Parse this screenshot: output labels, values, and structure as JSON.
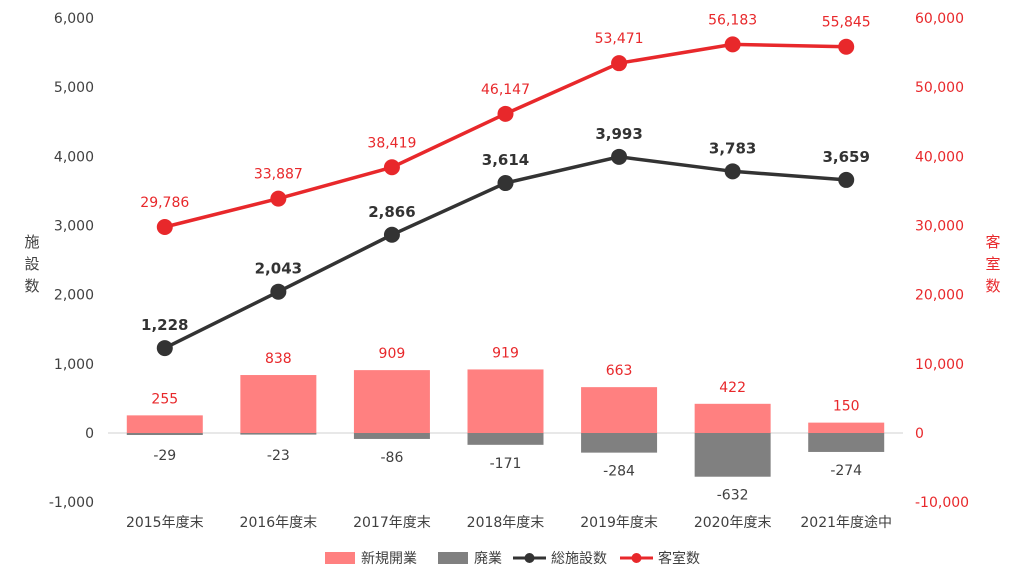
{
  "chart_data": {
    "type": "bar",
    "categories": [
      "2015年度末",
      "2016年度末",
      "2017年度末",
      "2018年度末",
      "2019年度末",
      "2020年度末",
      "2021年度途中"
    ],
    "series": [
      {
        "name": "新規開業",
        "type": "bar",
        "axis": "left",
        "color": "#ff8080",
        "values": [
          255,
          838,
          909,
          919,
          663,
          422,
          150
        ]
      },
      {
        "name": "廃業",
        "type": "bar",
        "axis": "left",
        "color": "#808080",
        "values": [
          -29,
          -23,
          -86,
          -171,
          -284,
          -632,
          -274
        ]
      },
      {
        "name": "総施設数",
        "type": "line",
        "axis": "left",
        "color": "#333333",
        "values": [
          1228,
          2043,
          2866,
          3614,
          3993,
          3783,
          3659
        ]
      },
      {
        "name": "客室数",
        "type": "line",
        "axis": "right",
        "color": "#e8282b",
        "values": [
          29786,
          33887,
          38419,
          46147,
          53471,
          56183,
          55845
        ]
      }
    ],
    "labels": {
      "new": [
        "255",
        "838",
        "909",
        "919",
        "663",
        "422",
        "150"
      ],
      "closed": [
        "-29",
        "-23",
        "-86",
        "-171",
        "-284",
        "-632",
        "-274"
      ],
      "facilities": [
        "1,228",
        "2,043",
        "2,866",
        "3,614",
        "3,993",
        "3,783",
        "3,659"
      ],
      "rooms": [
        "29,786",
        "33,887",
        "38,419",
        "46,147",
        "53,471",
        "56,183",
        "55,845"
      ]
    },
    "y_left": {
      "title": "施設数",
      "ylim": [
        -1000,
        6000
      ],
      "ticks": [
        -1000,
        0,
        1000,
        2000,
        3000,
        4000,
        5000,
        6000
      ],
      "tick_labels": [
        "-1,000",
        "0",
        "1,000",
        "2,000",
        "3,000",
        "4,000",
        "5,000",
        "6,000"
      ]
    },
    "y_right": {
      "title": "客室数",
      "ylim": [
        -10000,
        60000
      ],
      "ticks": [
        -10000,
        0,
        10000,
        20000,
        30000,
        40000,
        50000,
        60000
      ],
      "tick_labels": [
        "-10,000",
        "0",
        "10,000",
        "20,000",
        "30,000",
        "40,000",
        "50,000",
        "60,000"
      ]
    },
    "legend_position": "bottom",
    "grid": false
  }
}
